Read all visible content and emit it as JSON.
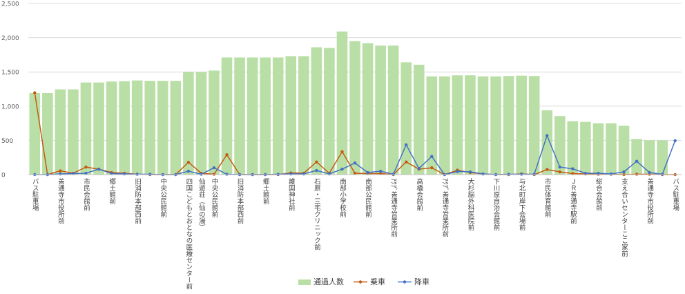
{
  "chart_data": {
    "type": "bar",
    "title": "",
    "xlabel": "",
    "ylabel": "",
    "ylim": [
      0,
      2500
    ],
    "yticks": [
      0,
      500,
      1000,
      1500,
      2000,
      2500
    ],
    "ytick_labels": [
      "0",
      "500",
      "1,000",
      "1,500",
      "2,000",
      "2,500"
    ],
    "grid": true,
    "legend_position": "bottom",
    "colors": {
      "bar": "#b9dfa6",
      "boarding": "#c55a11",
      "alighting": "#4472c4",
      "grid": "#d9d9d9",
      "axis_text": "#595959"
    },
    "x_labels": [
      {
        "i": 0,
        "text": "バス駐車場"
      },
      {
        "i": 2,
        "text": "善通寺市役所前"
      },
      {
        "i": 4,
        "text": "市民会館前"
      },
      {
        "i": 6,
        "text": "郷土館前"
      },
      {
        "i": 8,
        "text": "旧消防本部西前"
      },
      {
        "i": 10,
        "text": "中央公民館前"
      },
      {
        "i": 12,
        "text": "四国こどもとおとなの医療センター前"
      },
      {
        "i": 13,
        "text": "仙遊荘（仙の湯）"
      },
      {
        "i": 14,
        "text": "中央公民館前"
      },
      {
        "i": 16,
        "text": "旧消防本部西前"
      },
      {
        "i": 18,
        "text": "郷土館前"
      },
      {
        "i": 20,
        "text": "護国神社前"
      },
      {
        "i": 22,
        "text": "石原・三宅クリニック前"
      },
      {
        "i": 24,
        "text": "南部小学校前"
      },
      {
        "i": 26,
        "text": "南部公民館前"
      },
      {
        "i": 28,
        "text": "ｱｸｱﾞ善通寺営業所前"
      },
      {
        "i": 30,
        "text": "高橋会館前"
      },
      {
        "i": 32,
        "text": "ｱｸｱﾞ善通寺営業所前"
      },
      {
        "i": 34,
        "text": "大杉脳外科医院前"
      },
      {
        "i": 36,
        "text": "下川原自治会館前"
      },
      {
        "i": 38,
        "text": "与北町岸下会場前"
      },
      {
        "i": 40,
        "text": "市民体育館前"
      },
      {
        "i": 42,
        "text": "ＪＲ善通寺駅前"
      },
      {
        "i": 44,
        "text": "総合会館前"
      },
      {
        "i": 46,
        "text": "支え合いセンターここ家前"
      },
      {
        "i": 48,
        "text": "善通寺市役所前"
      },
      {
        "i": 50,
        "text": "バス駐車場"
      }
    ],
    "series": [
      {
        "name": "通過人数",
        "kind": "bar",
        "values": [
          1190,
          1190,
          1245,
          1245,
          1345,
          1345,
          1360,
          1365,
          1375,
          1370,
          1370,
          1370,
          1500,
          1500,
          1520,
          1710,
          1710,
          1710,
          1710,
          1710,
          1730,
          1730,
          1860,
          1850,
          2090,
          1950,
          1920,
          1885,
          1885,
          1640,
          1605,
          1435,
          1435,
          1450,
          1450,
          1435,
          1435,
          1440,
          1445,
          1440,
          940,
          855,
          780,
          770,
          750,
          750,
          715,
          520,
          500,
          500,
          0
        ]
      },
      {
        "name": "乗車",
        "kind": "line",
        "values": [
          1195,
          0,
          55,
          20,
          110,
          80,
          30,
          20,
          5,
          0,
          0,
          0,
          180,
          20,
          5,
          290,
          0,
          0,
          0,
          0,
          25,
          20,
          185,
          20,
          335,
          20,
          15,
          15,
          0,
          185,
          80,
          100,
          0,
          65,
          30,
          10,
          0,
          0,
          10,
          0,
          75,
          40,
          15,
          10,
          5,
          5,
          0,
          5,
          5,
          0,
          0
        ]
      },
      {
        "name": "降車",
        "kind": "line",
        "values": [
          0,
          0,
          10,
          15,
          20,
          80,
          15,
          10,
          5,
          5,
          0,
          0,
          50,
          5,
          100,
          5,
          0,
          0,
          0,
          5,
          10,
          10,
          60,
          10,
          80,
          170,
          30,
          50,
          5,
          435,
          90,
          265,
          0,
          45,
          40,
          10,
          0,
          5,
          5,
          5,
          570,
          110,
          85,
          20,
          20,
          10,
          40,
          195,
          30,
          5,
          495
        ]
      }
    ]
  }
}
